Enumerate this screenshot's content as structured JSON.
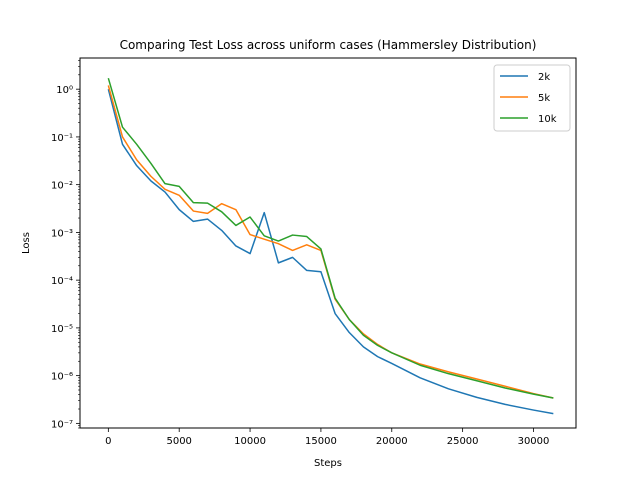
{
  "chart_data": {
    "type": "line",
    "title": "Comparing Test Loss across uniform cases (Hammersley Distribution)",
    "xlabel": "Steps",
    "ylabel": "Loss",
    "yscale": "log",
    "xlim": [
      -2000,
      33000
    ],
    "ylim": [
      8e-08,
      4.5
    ],
    "x_ticks": [
      0,
      5000,
      10000,
      15000,
      20000,
      25000,
      30000
    ],
    "y_ticks": [
      1e-07,
      1e-06,
      1e-05,
      0.0001,
      0.001,
      0.01,
      0.1,
      1
    ],
    "y_tick_labels": [
      "10⁻⁷",
      "10⁻⁶",
      "10⁻⁵",
      "10⁻⁴",
      "10⁻³",
      "10⁻²",
      "10⁻¹",
      "10⁰"
    ],
    "grid": false,
    "legend": "top-right",
    "series": [
      {
        "name": "2k",
        "color": "#1f77b4",
        "x": [
          0,
          1000,
          2000,
          3000,
          4000,
          5000,
          6000,
          7000,
          8000,
          9000,
          10000,
          11000,
          12000,
          13000,
          14000,
          15000,
          16000,
          17000,
          18000,
          19000,
          20000,
          22000,
          24000,
          26000,
          28000,
          30000,
          31400
        ],
        "y": [
          1.0,
          0.07,
          0.025,
          0.012,
          0.007,
          0.003,
          0.0017,
          0.0019,
          0.0011,
          0.00052,
          0.00036,
          0.0026,
          0.00023,
          0.0003,
          0.00016,
          0.00015,
          2e-05,
          8e-06,
          4e-06,
          2.5e-06,
          1.8e-06,
          9e-07,
          5.3e-07,
          3.5e-07,
          2.5e-07,
          1.9e-07,
          1.6e-07
        ]
      },
      {
        "name": "5k",
        "color": "#ff7f0e",
        "x": [
          0,
          1000,
          2000,
          3000,
          4000,
          5000,
          6000,
          7000,
          8000,
          9000,
          10000,
          11000,
          12000,
          13000,
          14000,
          15000,
          16000,
          17000,
          18000,
          19000,
          20000,
          22000,
          24000,
          26000,
          28000,
          30000,
          31400
        ],
        "y": [
          1.2,
          0.1,
          0.033,
          0.015,
          0.008,
          0.006,
          0.0028,
          0.0025,
          0.004,
          0.003,
          0.0009,
          0.00072,
          0.00058,
          0.00042,
          0.00055,
          0.00042,
          4e-05,
          1.5e-05,
          7.5e-06,
          4.5e-06,
          3e-06,
          1.75e-06,
          1.2e-06,
          8.5e-07,
          6e-07,
          4.2e-07,
          3.4e-07
        ]
      },
      {
        "name": "10k",
        "color": "#2ca02c",
        "x": [
          0,
          1000,
          2000,
          3000,
          4000,
          5000,
          6000,
          7000,
          8000,
          9000,
          10000,
          11000,
          12000,
          13000,
          14000,
          15000,
          16000,
          17000,
          18000,
          19000,
          20000,
          22000,
          24000,
          26000,
          28000,
          30000,
          31400
        ],
        "y": [
          1.7,
          0.16,
          0.07,
          0.028,
          0.0105,
          0.0092,
          0.0042,
          0.0041,
          0.0027,
          0.0014,
          0.0021,
          0.00085,
          0.00066,
          0.00088,
          0.00082,
          0.00045,
          4.2e-05,
          1.5e-05,
          7e-06,
          4.3e-06,
          3e-06,
          1.65e-06,
          1.1e-06,
          7.8e-07,
          5.5e-07,
          4.1e-07,
          3.4e-07
        ]
      }
    ]
  }
}
